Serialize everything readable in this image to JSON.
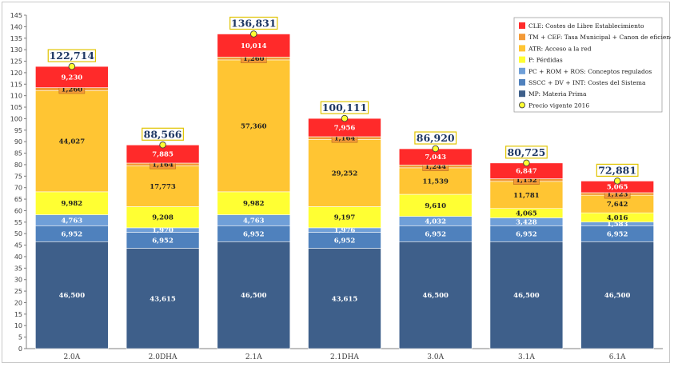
{
  "chart_data": {
    "type": "bar",
    "stacked": true,
    "categories": [
      "2.0A",
      "2.0DHA",
      "2.1A",
      "2.1DHA",
      "3.0A",
      "3.1A",
      "6.1A"
    ],
    "ylim": [
      0,
      145
    ],
    "ytick_step": 5,
    "grid": false,
    "legend_position": "top-right",
    "series": [
      {
        "name": "MP: Materia Prima",
        "color": "#3e5f8a",
        "values": [
          46.5,
          43.615,
          46.5,
          43.615,
          46.5,
          46.5,
          46.5
        ],
        "labels": [
          "46,500",
          "43,615",
          "46,500",
          "43,615",
          "46,500",
          "46,500",
          "46,500"
        ]
      },
      {
        "name": "SSCC + DV + INT: Costes del Sistema",
        "color": "#4f81bd",
        "values": [
          6.952,
          6.952,
          6.952,
          6.952,
          6.952,
          6.952,
          6.952
        ],
        "labels": [
          "6,952",
          "6,952",
          "6,952",
          "6,952",
          "6,952",
          "6,952",
          "6,952"
        ]
      },
      {
        "name": "PC + ROM + ROS: Conceptos regulados",
        "color": "#6f9fd8",
        "values": [
          4.763,
          1.97,
          4.763,
          1.976,
          4.032,
          3.428,
          1.583
        ],
        "labels": [
          "4,763",
          "1,970",
          "4,763",
          "1,976",
          "4,032",
          "3,428",
          "1,583"
        ]
      },
      {
        "name": "P: Pérdidas",
        "color": "#ffff33",
        "values": [
          9.982,
          9.208,
          9.982,
          9.197,
          9.61,
          4.065,
          4.016
        ],
        "labels": [
          "9,982",
          "9,208",
          "9,982",
          "9,197",
          "9,610",
          "4,065",
          "4,016"
        ]
      },
      {
        "name": "ATR: Acceso a la red",
        "color": "#ffc533",
        "values": [
          44.027,
          17.773,
          57.36,
          29.252,
          11.539,
          11.781,
          7.642
        ],
        "labels": [
          "44,027",
          "17,773",
          "57,360",
          "29,252",
          "11,539",
          "11,781",
          "7,642"
        ]
      },
      {
        "name": "TM + CEF: Tasa Municipal + Canon de eficiencia",
        "color": "#f39a37",
        "values": [
          1.26,
          1.164,
          1.26,
          1.164,
          1.244,
          1.152,
          1.123
        ],
        "labels": [
          "1,260",
          "1,164",
          "1,260",
          "1,164",
          "1,244",
          "1,152",
          "1,123"
        ]
      },
      {
        "name": "CLE: Costes de Libre Establecimiento",
        "color": "#ff2a2a",
        "values": [
          9.23,
          7.885,
          10.014,
          7.956,
          7.043,
          6.847,
          5.065
        ],
        "labels": [
          "9,230",
          "7,885",
          "10,014",
          "7,956",
          "7,043",
          "6,847",
          "5,065"
        ]
      }
    ],
    "totals": {
      "name": "Precio vigente 2016",
      "values": [
        122.714,
        88.566,
        136.831,
        100.111,
        86.92,
        80.725,
        72.881
      ],
      "labels": [
        "122,714",
        "88,566",
        "136,831",
        "100,111",
        "86,920",
        "80,725",
        "72,881"
      ],
      "marker_color": "#ffff33"
    },
    "legend": [
      "CLE: Costes de Libre Establecimiento",
      "TM + CEF: Tasa Municipal + Canon de eficiencia",
      "ATR: Acceso a la red",
      "P: Pérdidas",
      "PC + ROM + ROS: Conceptos regulados",
      "SSCC + DV + INT: Costes del Sistema",
      "MP: Materia Prima",
      "Precio vigente 2016"
    ]
  }
}
